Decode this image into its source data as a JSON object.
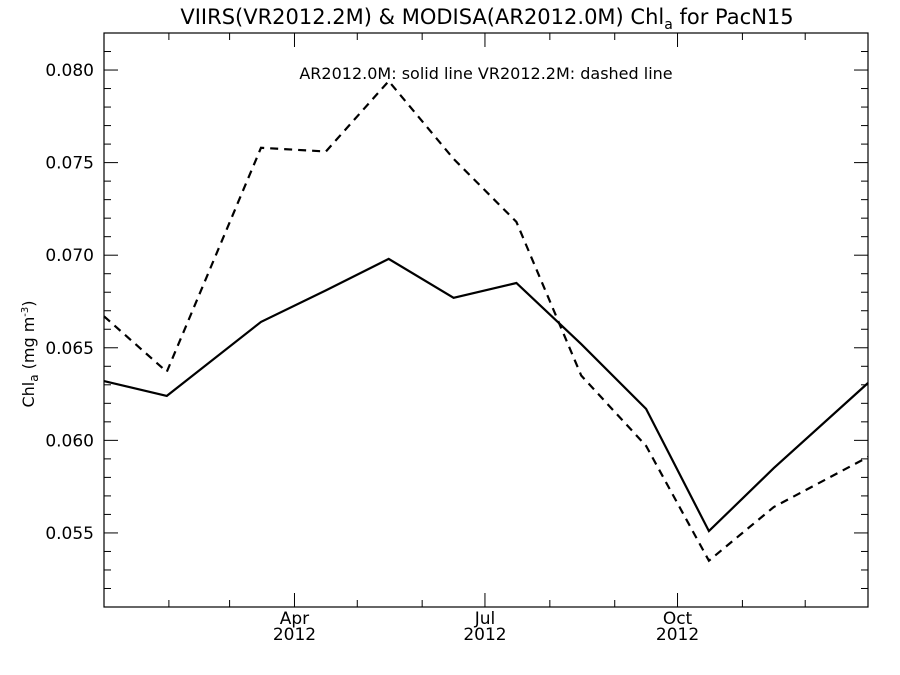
{
  "chart_data": {
    "type": "line",
    "title": "VIIRS(VR2012.2M) & MODISA(AR2012.0M)  Chl",
    "title_sub": "a",
    "title_suffix": " for PacN15",
    "ylabel": "Chl",
    "ylabel_sub": "a",
    "ylabel_units": " (mg m",
    "ylabel_sup": "-3",
    "ylabel_close": ")",
    "annotation": "AR2012.0M: solid line   VR2012.2M: dashed line",
    "xlim": [
      "2012-01-01",
      "2012-12-31"
    ],
    "ylim": [
      0.051,
      0.082
    ],
    "x_ticks": [
      {
        "month": "Apr",
        "year": "2012",
        "date": "2012-04-01"
      },
      {
        "month": "Jul",
        "year": "2012",
        "date": "2012-07-01"
      },
      {
        "month": "Oct",
        "year": "2012",
        "date": "2012-10-01"
      }
    ],
    "y_ticks": [
      "0.055",
      "0.060",
      "0.065",
      "0.070",
      "0.075",
      "0.080"
    ],
    "grid": false,
    "series": [
      {
        "name": "AR2012.0M",
        "style": "solid",
        "color": "#000000",
        "points": [
          [
            "2012-01-01",
            0.0632
          ],
          [
            "2012-01-31",
            0.0624
          ],
          [
            "2012-03-16",
            0.0664
          ],
          [
            "2012-04-16",
            0.0681
          ],
          [
            "2012-05-16",
            0.0698
          ],
          [
            "2012-06-16",
            0.0677
          ],
          [
            "2012-07-16",
            0.0685
          ],
          [
            "2012-08-16",
            0.0652
          ],
          [
            "2012-09-16",
            0.0617
          ],
          [
            "2012-10-16",
            0.0551
          ],
          [
            "2012-11-16",
            0.0585
          ],
          [
            "2012-12-31",
            0.0631
          ]
        ]
      },
      {
        "name": "VR2012.2M",
        "style": "dashed",
        "color": "#000000",
        "points": [
          [
            "2012-01-01",
            0.0667
          ],
          [
            "2012-01-31",
            0.0637
          ],
          [
            "2012-03-16",
            0.0758
          ],
          [
            "2012-04-16",
            0.0756
          ],
          [
            "2012-05-16",
            0.0794
          ],
          [
            "2012-06-16",
            0.0752
          ],
          [
            "2012-07-16",
            0.0718
          ],
          [
            "2012-08-16",
            0.0635
          ],
          [
            "2012-09-16",
            0.0597
          ],
          [
            "2012-10-16",
            0.0535
          ],
          [
            "2012-11-16",
            0.0564
          ],
          [
            "2012-12-31",
            0.0591
          ]
        ]
      }
    ]
  }
}
